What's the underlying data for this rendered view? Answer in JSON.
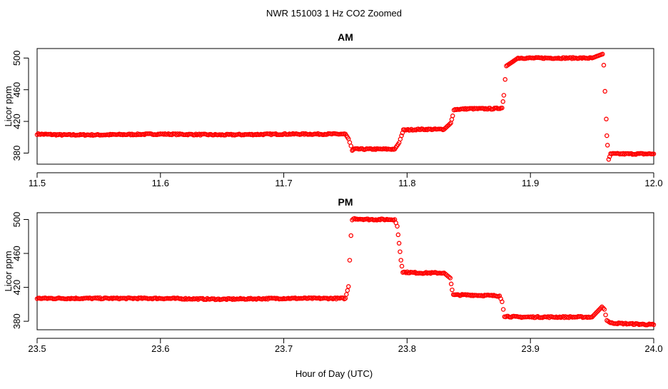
{
  "figure": {
    "title": "NWR  151003  1 Hz CO2 Zoomed",
    "xlabel": "Hour of Day (UTC)"
  },
  "chart_data": [
    {
      "type": "scatter",
      "title": "AM",
      "xlabel": "Hour of Day (UTC)",
      "ylabel": "Licor ppm",
      "xlim": [
        11.5,
        12.0
      ],
      "ylim": [
        366,
        512
      ],
      "xticks": [
        "11.5",
        "11.6",
        "11.7",
        "11.8",
        "11.9",
        "12.0"
      ],
      "yticks": [
        "380",
        "420",
        "460",
        "500"
      ],
      "grid": false,
      "color": "#ff0000",
      "series": [
        {
          "x": [
            11.5,
            11.52,
            11.55,
            11.6,
            11.65,
            11.7,
            11.75,
            11.7525,
            11.7545,
            11.7555,
            11.757,
            11.77,
            11.79,
            11.7935,
            11.7955,
            11.797,
            11.81,
            11.83,
            11.8355,
            11.837,
            11.838,
            11.85,
            11.87,
            11.877,
            11.8785,
            11.8795,
            11.8805,
            11.89,
            11.91,
            11.93,
            11.95,
            11.9585,
            11.9595,
            11.9605,
            11.9615,
            11.962,
            11.9625,
            11.9635,
            11.965,
            11.98,
            12.0
          ],
          "y": [
            404,
            403,
            403,
            404,
            403,
            404,
            404,
            398,
            389,
            383,
            385,
            385,
            385,
            393,
            402,
            409,
            410,
            410,
            418,
            427,
            435,
            436,
            436,
            437,
            453,
            473,
            490,
            500,
            500,
            500,
            500,
            505,
            491,
            458,
            423,
            402,
            390,
            372,
            379,
            379,
            379
          ]
        }
      ]
    },
    {
      "type": "scatter",
      "title": "PM",
      "xlabel": "Hour of Day (UTC)",
      "ylabel": "Licor ppm",
      "xlim": [
        23.5,
        24.0
      ],
      "ylim": [
        370,
        508
      ],
      "xticks": [
        "23.5",
        "23.6",
        "23.7",
        "23.8",
        "23.9",
        "24.0"
      ],
      "yticks": [
        "380",
        "420",
        "460",
        "500"
      ],
      "grid": false,
      "color": "#ff0000",
      "series": [
        {
          "x": [
            23.5,
            23.55,
            23.6,
            23.65,
            23.7,
            23.75,
            23.7525,
            23.7535,
            23.7545,
            23.7555,
            23.7565,
            23.77,
            23.79,
            23.792,
            23.7935,
            23.795,
            23.7965,
            23.81,
            23.83,
            23.835,
            23.8365,
            23.8375,
            23.85,
            23.875,
            23.877,
            23.878,
            23.879,
            23.89,
            23.92,
            23.95,
            23.958,
            23.96,
            23.962,
            23.965,
            23.98,
            24.0
          ],
          "y": [
            407,
            407,
            407,
            406,
            407,
            407,
            421,
            452,
            481,
            499,
            501,
            500,
            500,
            492,
            472,
            452,
            438,
            437,
            437,
            431,
            417,
            411,
            411,
            410,
            403,
            394,
            386,
            385,
            385,
            385,
            397,
            394,
            381,
            378,
            377,
            376
          ]
        }
      ]
    }
  ]
}
